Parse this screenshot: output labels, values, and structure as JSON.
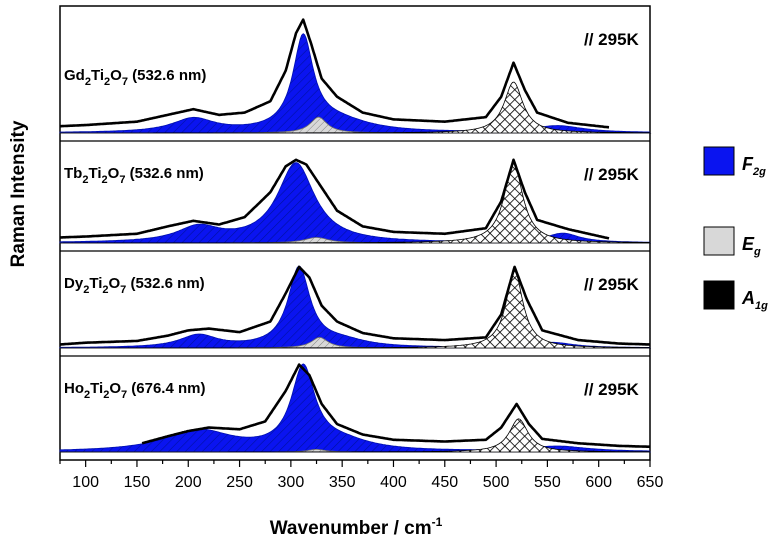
{
  "chart_data": {
    "type": "area",
    "xlabel_main": "Wavenumber / cm",
    "xlabel_sup": "-1",
    "ylabel": "Raman Intensity",
    "xlim": [
      75,
      650
    ],
    "xticks": [
      100,
      150,
      200,
      250,
      300,
      350,
      400,
      450,
      500,
      550,
      600,
      650
    ],
    "polarization_label": "//  295K",
    "legend": [
      {
        "key": "F2g",
        "base": "F",
        "sub": "2g",
        "color": "#0a14f0",
        "pattern": "blue-hatch"
      },
      {
        "key": "Eg",
        "base": "E",
        "sub": "g",
        "color": "#d8d8d8",
        "pattern": "gray-hatch"
      },
      {
        "key": "A1g",
        "base": "A",
        "sub": "1g",
        "color": "#000000",
        "pattern": "crosshatch"
      }
    ],
    "panels": [
      {
        "compound_base": "Gd",
        "sub1": "2",
        "mid": "Ti",
        "sub2": "2",
        "end": "O",
        "sub3": "7",
        "wavelength": " (532.6 nm)",
        "x_start": 75,
        "x_end": 610,
        "spectrum": [
          [
            75,
            0.06
          ],
          [
            100,
            0.07
          ],
          [
            150,
            0.1
          ],
          [
            180,
            0.16
          ],
          [
            205,
            0.21
          ],
          [
            230,
            0.16
          ],
          [
            255,
            0.18
          ],
          [
            280,
            0.28
          ],
          [
            295,
            0.55
          ],
          [
            305,
            0.88
          ],
          [
            312,
            1.0
          ],
          [
            320,
            0.78
          ],
          [
            330,
            0.48
          ],
          [
            345,
            0.32
          ],
          [
            370,
            0.18
          ],
          [
            400,
            0.12
          ],
          [
            450,
            0.1
          ],
          [
            490,
            0.14
          ],
          [
            505,
            0.32
          ],
          [
            517,
            0.62
          ],
          [
            528,
            0.38
          ],
          [
            540,
            0.18
          ],
          [
            570,
            0.09
          ],
          [
            610,
            0.05
          ]
        ],
        "modes": [
          {
            "type": "F2g",
            "peaks": [
              [
                205,
                0.12,
                25
              ],
              [
                312,
                0.81,
                12
              ],
              [
                345,
                0.1,
                40
              ],
              [
                560,
                0.06,
                30
              ]
            ]
          },
          {
            "type": "Eg",
            "peaks": [
              [
                327,
                0.14,
                10
              ]
            ]
          },
          {
            "type": "A1g",
            "peaks": [
              [
                517,
                0.45,
                11
              ]
            ]
          }
        ]
      },
      {
        "compound_base": "Tb",
        "sub1": "2",
        "mid": "Ti",
        "sub2": "2",
        "end": "O",
        "sub3": "7",
        "wavelength": " (532.6 nm)",
        "x_start": 75,
        "x_end": 610,
        "spectrum": [
          [
            75,
            0.06
          ],
          [
            100,
            0.07
          ],
          [
            150,
            0.1
          ],
          [
            180,
            0.18
          ],
          [
            205,
            0.24
          ],
          [
            230,
            0.2
          ],
          [
            255,
            0.28
          ],
          [
            280,
            0.55
          ],
          [
            295,
            0.83
          ],
          [
            305,
            0.9
          ],
          [
            315,
            0.85
          ],
          [
            330,
            0.6
          ],
          [
            345,
            0.35
          ],
          [
            370,
            0.18
          ],
          [
            400,
            0.12
          ],
          [
            450,
            0.1
          ],
          [
            490,
            0.16
          ],
          [
            505,
            0.45
          ],
          [
            517,
            0.9
          ],
          [
            528,
            0.55
          ],
          [
            540,
            0.25
          ],
          [
            570,
            0.15
          ],
          [
            610,
            0.05
          ]
        ],
        "modes": [
          {
            "type": "F2g",
            "peaks": [
              [
                210,
                0.16,
                25
              ],
              [
                305,
                0.86,
                22
              ],
              [
                565,
                0.1,
                20
              ]
            ]
          },
          {
            "type": "Eg",
            "peaks": [
              [
                325,
                0.06,
                14
              ]
            ]
          },
          {
            "type": "A1g",
            "peaks": [
              [
                517,
                0.86,
                11
              ]
            ]
          }
        ]
      },
      {
        "compound_base": "Dy",
        "sub1": "2",
        "mid": "Ti",
        "sub2": "2",
        "end": "O",
        "sub3": "7",
        "wavelength": " (532.6 nm)",
        "x_start": 75,
        "x_end": 650,
        "spectrum": [
          [
            75,
            0.04
          ],
          [
            100,
            0.06
          ],
          [
            150,
            0.08
          ],
          [
            180,
            0.14
          ],
          [
            200,
            0.2
          ],
          [
            220,
            0.22
          ],
          [
            250,
            0.18
          ],
          [
            280,
            0.3
          ],
          [
            295,
            0.62
          ],
          [
            308,
            0.92
          ],
          [
            318,
            0.8
          ],
          [
            330,
            0.48
          ],
          [
            345,
            0.3
          ],
          [
            370,
            0.17
          ],
          [
            400,
            0.11
          ],
          [
            450,
            0.09
          ],
          [
            490,
            0.12
          ],
          [
            505,
            0.38
          ],
          [
            518,
            0.92
          ],
          [
            530,
            0.55
          ],
          [
            545,
            0.2
          ],
          [
            580,
            0.09
          ],
          [
            620,
            0.05
          ],
          [
            650,
            0.04
          ]
        ],
        "modes": [
          {
            "type": "F2g",
            "peaks": [
              [
                210,
                0.14,
                22
              ],
              [
                308,
                0.9,
                13
              ],
              [
                350,
                0.07,
                30
              ],
              [
                555,
                0.06,
                25
              ]
            ]
          },
          {
            "type": "Eg",
            "peaks": [
              [
                328,
                0.12,
                10
              ]
            ]
          },
          {
            "type": "A1g",
            "peaks": [
              [
                518,
                0.87,
                10
              ]
            ]
          }
        ]
      },
      {
        "compound_base": "Ho",
        "sub1": "2",
        "mid": "Ti",
        "sub2": "2",
        "end": "O",
        "sub3": "7",
        "wavelength": " (676.4 nm)",
        "x_start": 155,
        "x_end": 650,
        "spectrum": [
          [
            155,
            0.1
          ],
          [
            180,
            0.18
          ],
          [
            200,
            0.24
          ],
          [
            220,
            0.28
          ],
          [
            250,
            0.26
          ],
          [
            275,
            0.35
          ],
          [
            295,
            0.7
          ],
          [
            308,
            1.0
          ],
          [
            318,
            0.88
          ],
          [
            330,
            0.55
          ],
          [
            345,
            0.32
          ],
          [
            370,
            0.2
          ],
          [
            400,
            0.14
          ],
          [
            450,
            0.12
          ],
          [
            490,
            0.14
          ],
          [
            505,
            0.28
          ],
          [
            520,
            0.55
          ],
          [
            532,
            0.32
          ],
          [
            545,
            0.15
          ],
          [
            580,
            0.1
          ],
          [
            620,
            0.07
          ],
          [
            650,
            0.06
          ]
        ],
        "modes": [
          {
            "type": "F2g",
            "peaks": [
              [
                210,
                0.24,
                40
              ],
              [
                312,
                0.93,
                14
              ],
              [
                350,
                0.1,
                35
              ],
              [
                560,
                0.06,
                35
              ]
            ]
          },
          {
            "type": "Eg",
            "peaks": [
              [
                325,
                0.03,
                10
              ]
            ]
          },
          {
            "type": "A1g",
            "peaks": [
              [
                522,
                0.38,
                11
              ]
            ]
          }
        ]
      }
    ]
  }
}
